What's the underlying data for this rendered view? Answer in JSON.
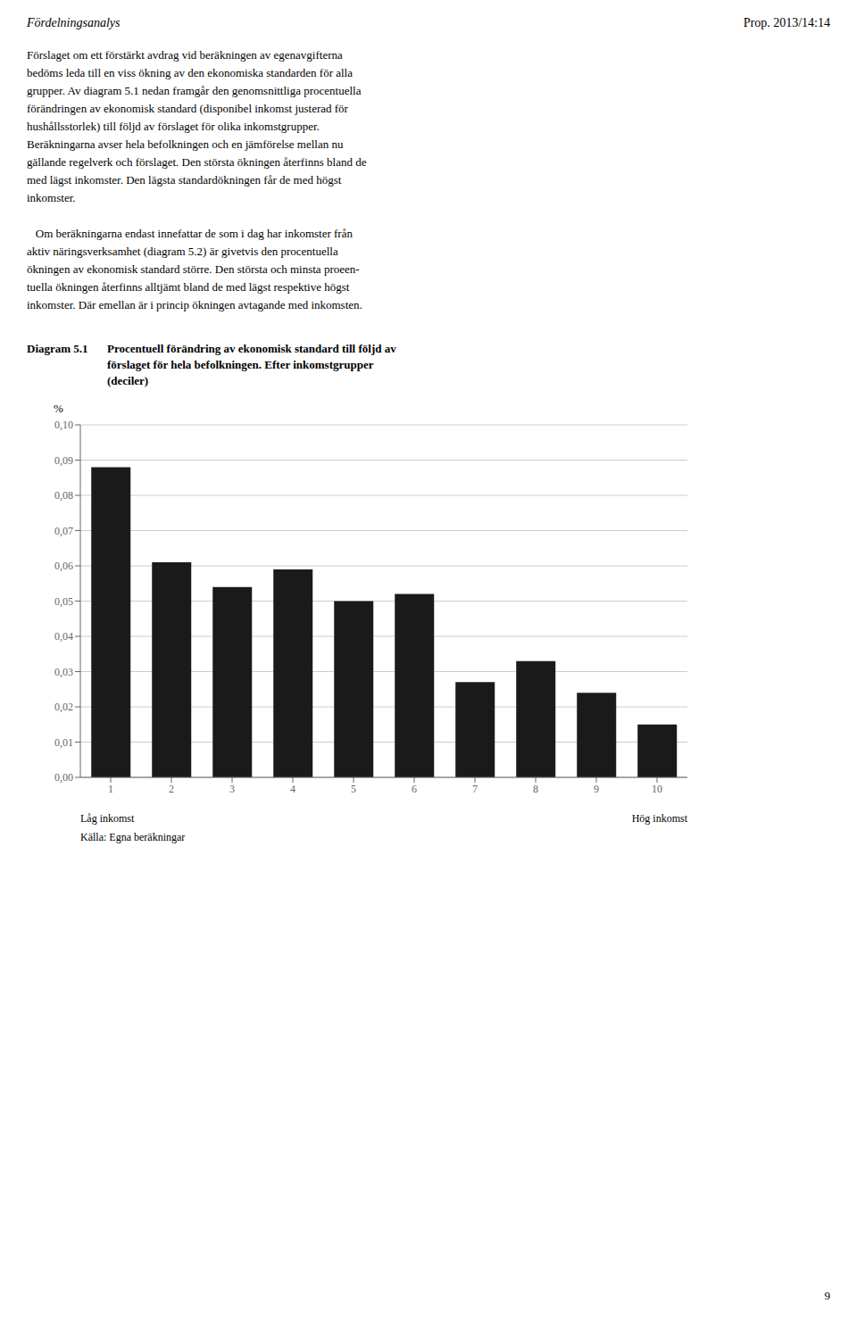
{
  "chart_data": {
    "type": "bar",
    "title": "Diagram 5.1",
    "subtitle": "Procentuell förändring av ekonomisk standard till följd av\nförslaget för hela befolkningen. Efter inkomstgrupper\n(deciler)",
    "categories": [
      1,
      2,
      3,
      4,
      5,
      6,
      7,
      8,
      9,
      10
    ],
    "values": [
      0.088,
      0.061,
      0.054,
      0.059,
      0.05,
      0.052,
      0.027,
      0.033,
      0.024,
      0.015
    ],
    "color": "#1a1a1a",
    "ylabel": "%",
    "ylim": [
      0.0,
      0.1
    ],
    "yticks": [
      {
        "value": 0.0,
        "label": "0,00"
      },
      {
        "value": 0.01,
        "label": "0,01"
      },
      {
        "value": 0.02,
        "label": "0,02"
      },
      {
        "value": 0.03,
        "label": "0,03"
      },
      {
        "value": 0.04,
        "label": "0,04"
      },
      {
        "value": 0.05,
        "label": "0,05"
      },
      {
        "value": 0.06,
        "label": "0,06"
      },
      {
        "value": 0.07,
        "label": "0,07"
      },
      {
        "value": 0.08,
        "label": "0,08"
      },
      {
        "value": 0.09,
        "label": "0,09"
      },
      {
        "value": 0.1,
        "label": "0,10"
      }
    ],
    "grid": true,
    "annotations": [
      "Fördelningsanalys",
      "Prop. 2013/14:14",
      "Förslaget om ett förstärkt avdrag vid beräkningen av egenavgifterna\nbedöms leda till en viss ökning av den ekonomiska standarden för alla\ngrupper. Av diagram 5.1 nedan framgår den genomsnittliga procentuella\nförändringen av ekonomisk standard (disponibel inkomst justerad för\nhushållsstorlek) till följd av förslaget för olika inkomstgrupper.\nBeräkningarna avser hela befolkningen och en jämförelse mellan nu\ngällande regelverk och förslaget. Den största ökningen återfinns bland de\nmed lägst inkomster. Den lägsta standardökningen får de med högst\ninkomster.\n\n   Om beräkningarna endast innefattar de som i dag har inkomster från\naktiv näringsverksamhet (diagram 5.2) är givetvis den procentuella\nökningen av ekonomisk standard större. Den största och minsta proeen-\ntuella ökningen återfinns alltjämt bland de med lägst respektive högst\ninkomster. Där emellan är i princip ökningen avtagande med inkomsten.",
      "Låg inkomst",
      "Hög inkomst",
      "Källa: Egna beräkningar",
      "9"
    ]
  }
}
